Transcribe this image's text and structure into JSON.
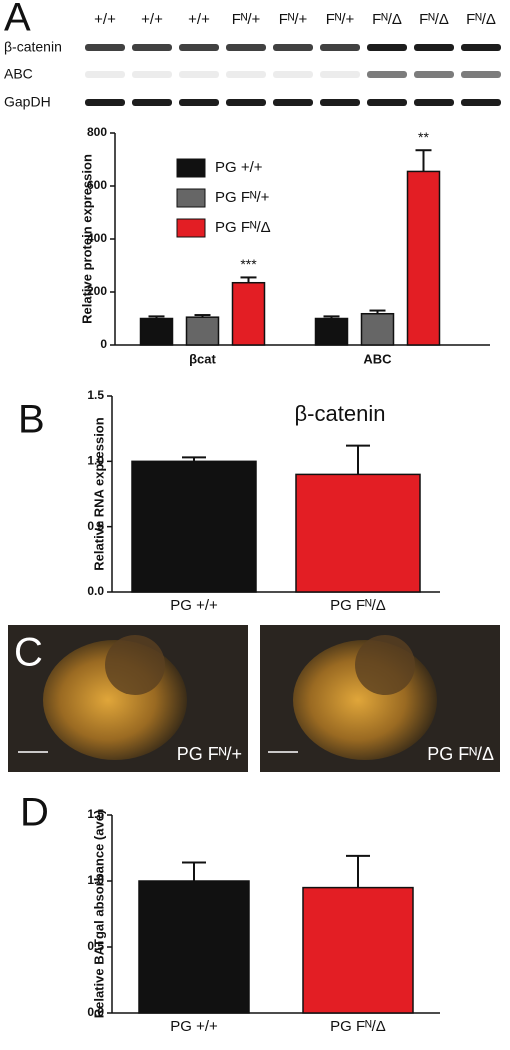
{
  "panel_labels": [
    "A",
    "B",
    "C",
    "D"
  ],
  "blot": {
    "lanes": [
      "+/+",
      "+/+",
      "+/+",
      "Fᴺ/+",
      "Fᴺ/+",
      "Fᴺ/+",
      "Fᴺ/Δ",
      "Fᴺ/Δ",
      "Fᴺ/Δ"
    ],
    "rows": [
      "β-catenin",
      "ABC",
      "GapDH"
    ]
  },
  "images": [
    "PG Fᴺ/+",
    "PG Fᴺ/Δ"
  ],
  "chart_data": [
    {
      "type": "bar",
      "ylabel": "Relative protein expression",
      "categories": [
        "βcat",
        "ABC"
      ],
      "series": [
        {
          "name": "PG +/+",
          "color": "#111111",
          "values": [
            100,
            100
          ],
          "errors": [
            8,
            8
          ]
        },
        {
          "name": "PG Fᴺ/+",
          "color": "#666666",
          "values": [
            105,
            118
          ],
          "errors": [
            8,
            12
          ]
        },
        {
          "name": "PG Fᴺ/Δ",
          "color": "#e31e24",
          "values": [
            235,
            655
          ],
          "errors": [
            20,
            80
          ],
          "significance": [
            "***",
            "**"
          ]
        }
      ],
      "ylim": [
        0,
        800
      ],
      "yticks": [
        0,
        200,
        400,
        600,
        800
      ],
      "legend": "top-left"
    },
    {
      "type": "bar",
      "title": "β-catenin",
      "ylabel": "Relative RNA expression",
      "categories": [
        "PG +/+",
        "PG Fᴺ/Δ"
      ],
      "values": [
        1.0,
        0.9
      ],
      "errors": [
        0.03,
        0.22
      ],
      "colors": [
        "#111111",
        "#e31e24"
      ],
      "ylim": [
        0,
        1.5
      ],
      "yticks": [
        {
          "value": 0,
          "label": "0.0"
        },
        0.5,
        {
          "value": 1,
          "label": "1.0"
        },
        1.5
      ]
    },
    {
      "type": "bar",
      "ylabel": "Relative BATgal absorbance (ave)",
      "categories": [
        "PG +/+",
        "PG Fᴺ/Δ"
      ],
      "values": [
        1.0,
        0.95
      ],
      "errors": [
        0.14,
        0.24
      ],
      "colors": [
        "#111111",
        "#e31e24"
      ],
      "ylim": [
        0,
        1.5
      ],
      "yticks": [
        {
          "value": 0,
          "label": "0.0"
        },
        0.5,
        {
          "value": 1,
          "label": "1.0"
        },
        1.5
      ]
    }
  ]
}
